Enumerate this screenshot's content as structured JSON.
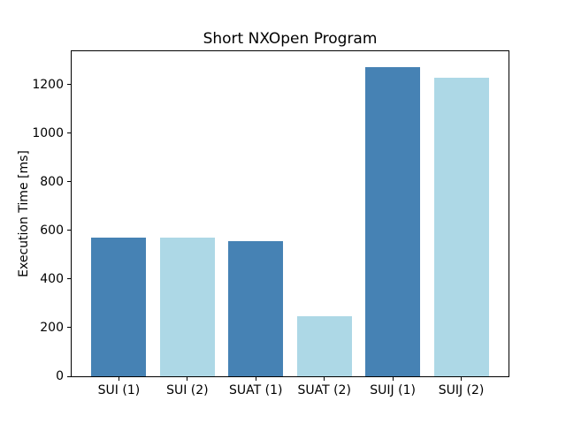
{
  "figure": {
    "background": "#ffffff"
  },
  "chart_data": {
    "type": "bar",
    "title": "Short NXOpen Program",
    "xlabel": "",
    "ylabel": "Execution Time [ms]",
    "categories": [
      "SUI (1)",
      "SUI (2)",
      "SUAT (1)",
      "SUAT (2)",
      "SUIJ (1)",
      "SUIJ (2)"
    ],
    "values": [
      572,
      570,
      556,
      247,
      1273,
      1227
    ],
    "bar_colors": [
      "#4682b4",
      "#add8e6",
      "#4682b4",
      "#add8e6",
      "#4682b4",
      "#add8e6"
    ],
    "palette": {
      "dark_blue": "#4682b4",
      "light_blue": "#add8e6"
    },
    "axis_color": "#000000",
    "text_color": "#000000",
    "ylim": [
      0,
      1337
    ],
    "yticks": [
      0,
      200,
      400,
      600,
      800,
      1000,
      1200
    ],
    "xlim": [
      -0.69,
      5.69
    ],
    "bar_width": 0.8,
    "grid": false,
    "legend": "none"
  }
}
